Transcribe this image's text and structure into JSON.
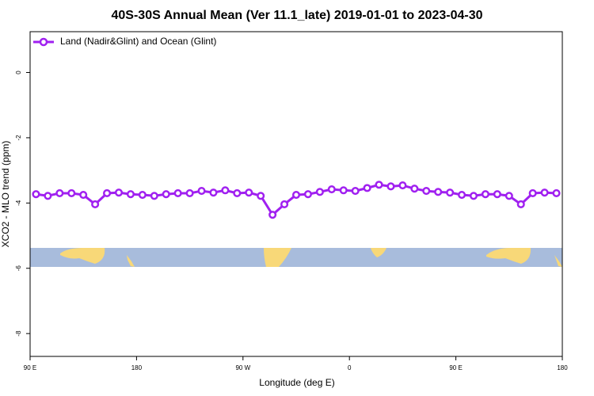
{
  "chart_data": {
    "type": "line",
    "title": "40S-30S Annual Mean (Ver 11.1_late)   2019-01-01 to 2023-04-30",
    "x_label": "Longitude (deg E)",
    "y_label": "XCO2 - MLO trend (ppm)",
    "x": [
      95,
      105,
      115,
      125,
      135,
      145,
      155,
      165,
      175,
      185,
      195,
      205,
      215,
      225,
      235,
      245,
      255,
      265,
      275,
      285,
      295,
      305,
      315,
      325,
      335,
      345,
      355,
      365,
      375,
      385,
      395,
      405,
      415,
      425,
      435,
      445,
      455,
      465,
      475,
      485,
      495,
      505,
      515,
      525,
      535
    ],
    "series": [
      {
        "name": "Land (Nadir&Glint) and Ocean (Glint)",
        "color": "#a020f0",
        "values": [
          -3.73,
          -3.78,
          -3.7,
          -3.7,
          -3.75,
          -4.04,
          -3.7,
          -3.68,
          -3.73,
          -3.75,
          -3.78,
          -3.73,
          -3.7,
          -3.7,
          -3.63,
          -3.68,
          -3.61,
          -3.7,
          -3.68,
          -3.78,
          -4.36,
          -4.04,
          -3.75,
          -3.73,
          -3.66,
          -3.58,
          -3.61,
          -3.63,
          -3.54,
          -3.44,
          -3.49,
          -3.46,
          -3.56,
          -3.63,
          -3.66,
          -3.68,
          -3.75,
          -3.78,
          -3.73,
          -3.73,
          -3.78,
          -4.04,
          -3.7,
          -3.68,
          -3.7
        ]
      }
    ],
    "xlim": [
      90,
      540
    ],
    "xticks": [
      {
        "value": 90,
        "label": "90 E"
      },
      180,
      {
        "value": 270,
        "label": "90 W"
      },
      {
        "value": 360,
        "label": "0"
      },
      {
        "value": 450,
        "label": "90 E"
      },
      {
        "value": 540,
        "label": "180"
      }
    ],
    "ylim": [
      -8.7,
      1.25
    ],
    "yticks": [
      0,
      -2,
      -4,
      -6,
      -8
    ],
    "legend": "top-left"
  }
}
